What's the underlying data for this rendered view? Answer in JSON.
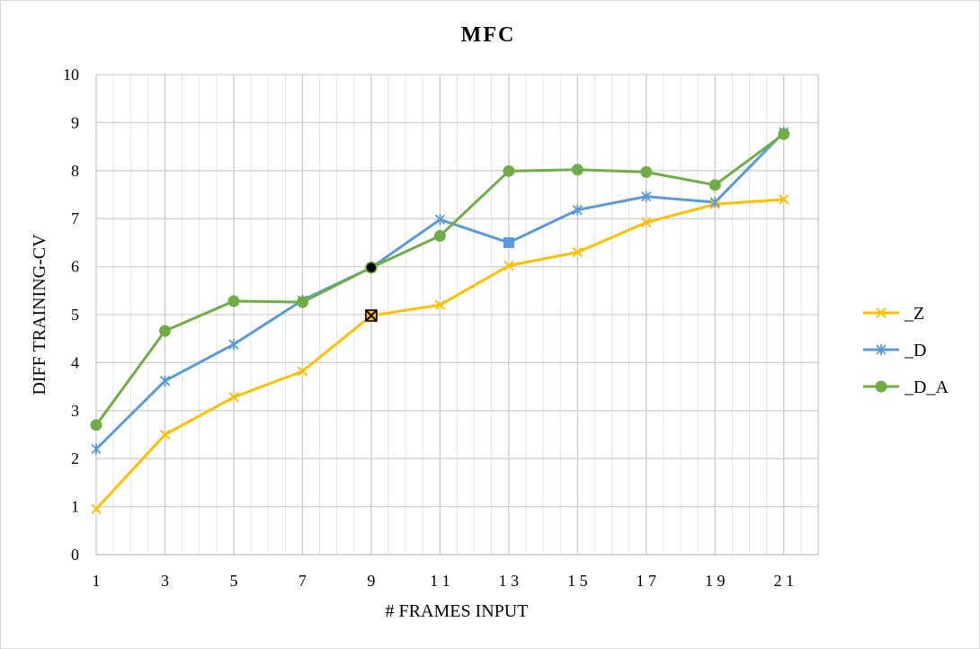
{
  "chart_data": {
    "type": "line",
    "title": "MFC",
    "xlabel": "# FRAMES INPUT",
    "ylabel": "DIFF  TRAINING-CV",
    "x": [
      1,
      3,
      5,
      7,
      9,
      11,
      13,
      15,
      17,
      19,
      21
    ],
    "xtick_labels": [
      "1",
      "3",
      "5",
      "7",
      "9",
      "1 1",
      "1 3",
      "1 5",
      "1 7",
      "1 9",
      "2 1"
    ],
    "ylim": [
      0,
      10
    ],
    "yticks": [
      0,
      1,
      2,
      3,
      4,
      5,
      6,
      7,
      8,
      9,
      10
    ],
    "grid": true,
    "legend_position": "right",
    "series": [
      {
        "name": "_Z",
        "color": "#FFC000",
        "marker": "x",
        "values": [
          0.95,
          2.5,
          3.28,
          3.82,
          4.98,
          5.2,
          6.02,
          6.3,
          6.92,
          7.3,
          7.4
        ],
        "highlight_index": 4
      },
      {
        "name": "_D",
        "color": "#5B9BD5",
        "marker": "star",
        "values": [
          2.2,
          3.62,
          4.38,
          5.3,
          5.98,
          6.98,
          6.5,
          7.18,
          7.46,
          7.34,
          8.8
        ],
        "highlight_index": 6
      },
      {
        "name": "_D_A",
        "color": "#70AD47",
        "marker": "circle",
        "values": [
          2.7,
          4.66,
          5.28,
          5.26,
          5.98,
          6.64,
          7.99,
          8.02,
          7.97,
          7.7,
          8.76
        ],
        "highlight_index": 4
      }
    ]
  }
}
